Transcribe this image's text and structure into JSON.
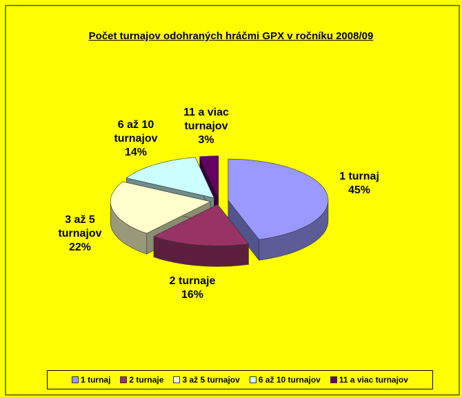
{
  "chart_data": {
    "type": "pie",
    "title": "Počet turnajov odohraných hráčmi GPX v ročníku 2008/09",
    "categories": [
      "1 turnaj",
      "2 turnaje",
      "3 až 5 turnajov",
      "6 až 10 turnajov",
      "11 a viac turnajov"
    ],
    "values": [
      45,
      16,
      22,
      14,
      3
    ],
    "value_labels": [
      "45%",
      "16%",
      "22%",
      "14%",
      "3%"
    ],
    "colors": [
      "#9999ff",
      "#993366",
      "#ffffcc",
      "#ccffff",
      "#660066"
    ],
    "legend": "bottom"
  }
}
